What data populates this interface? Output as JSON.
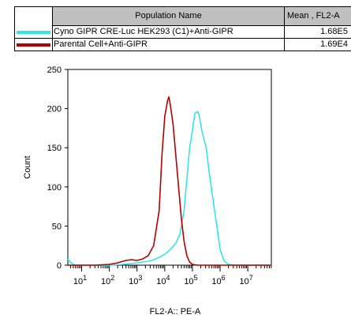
{
  "legend": {
    "header_name": "Population Name",
    "header_stat": "Mean , FL2-A",
    "rows": [
      {
        "name": "Cyno GIPR  CRE-Luc  HEK293 (C1)+Anti-GIPR",
        "value": "1.68E5",
        "color": "#33e6e6"
      },
      {
        "name": "Parental Cell+Anti-GIPR",
        "value": "1.69E4",
        "color": "#b30000"
      }
    ]
  },
  "chart_data": {
    "type": "line",
    "xlabel": "FL2-A:: PE-A",
    "ylabel": "Count",
    "x_scale": "log",
    "xlim_log10": [
      0.5,
      7.85
    ],
    "ylim": [
      0,
      250
    ],
    "y_ticks": [
      0,
      50,
      100,
      150,
      200,
      250
    ],
    "x_major_exponents": [
      1,
      2,
      3,
      4,
      5,
      6,
      7
    ],
    "x_tick_base": "10",
    "grid": false,
    "series": [
      {
        "name": "Cyno GIPR  CRE-Luc  HEK293 (C1)+Anti-GIPR",
        "color": "#33e6e6",
        "x_log10": [
          0.5,
          0.58,
          0.7,
          0.8,
          1.0,
          1.5,
          2.0,
          2.5,
          3.0,
          3.2,
          3.4,
          3.6,
          3.8,
          4.0,
          4.2,
          4.4,
          4.55,
          4.7,
          4.8,
          4.9,
          5.0,
          5.05,
          5.1,
          5.2,
          5.25,
          5.35,
          5.5,
          5.6,
          5.7,
          5.8,
          5.9,
          6.0,
          6.15,
          6.3,
          6.5,
          7.0,
          7.85
        ],
        "y": [
          8,
          4,
          1,
          0,
          0,
          0,
          0,
          1,
          3,
          4,
          5,
          7,
          10,
          14,
          20,
          28,
          40,
          70,
          110,
          150,
          172,
          185,
          195,
          196,
          190,
          170,
          150,
          120,
          95,
          70,
          45,
          20,
          5,
          1,
          0,
          0,
          0
        ]
      },
      {
        "name": "Parental Cell+Anti-GIPR",
        "color": "#b30000",
        "x_log10": [
          0.5,
          1.0,
          1.5,
          2.0,
          2.3,
          2.6,
          2.8,
          3.0,
          3.2,
          3.4,
          3.6,
          3.8,
          3.9,
          4.0,
          4.1,
          4.15,
          4.2,
          4.3,
          4.4,
          4.5,
          4.6,
          4.7,
          4.8,
          4.9,
          5.0,
          5.2,
          5.5,
          6.0,
          7.85
        ],
        "y": [
          0,
          0,
          0,
          1,
          3,
          6,
          7,
          6,
          8,
          12,
          25,
          70,
          140,
          190,
          210,
          215,
          205,
          180,
          140,
          100,
          60,
          30,
          12,
          4,
          1,
          0,
          0,
          0,
          0
        ]
      }
    ]
  }
}
